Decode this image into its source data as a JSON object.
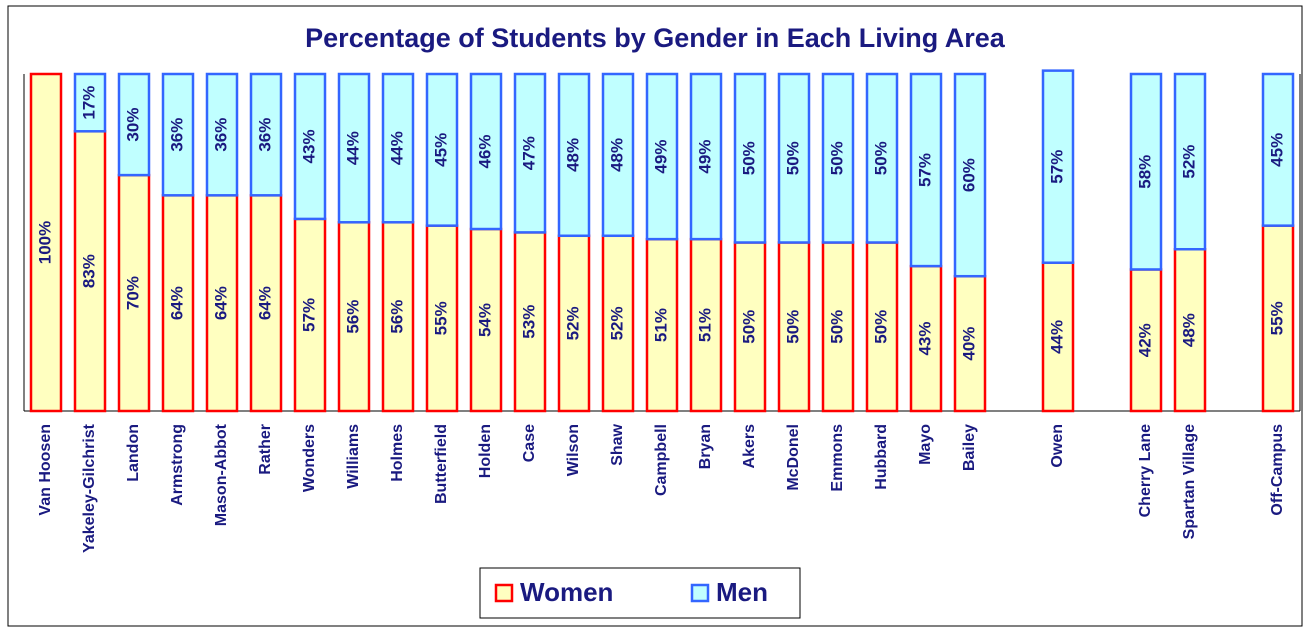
{
  "chart_data": {
    "type": "stacked_bar",
    "title": "Percentage of Students by Gender in Each Living Area",
    "categories": [
      "Van Hoosen",
      "Yakeley-Gilchrist",
      "Landon",
      "Armstrong",
      "Mason-Abbot",
      "Rather",
      "Wonders",
      "Williams",
      "Holmes",
      "Butterfield",
      "Holden",
      "Case",
      "Wilson",
      "Shaw",
      "Campbell",
      "Bryan",
      "Akers",
      "McDonel",
      "Emmons",
      "Hubbard",
      "Mayo",
      "Bailey",
      null,
      "Owen",
      null,
      "Cherry Lane",
      "Spartan Village",
      null,
      "Off-Campus"
    ],
    "series": [
      {
        "name": "Women",
        "color": "#ffffc0",
        "edge_color": "#ff0000",
        "values": [
          100,
          83,
          70,
          64,
          64,
          64,
          57,
          56,
          56,
          55,
          54,
          53,
          52,
          52,
          51,
          51,
          50,
          50,
          50,
          50,
          43,
          40,
          null,
          44,
          null,
          42,
          48,
          null,
          55
        ],
        "value_labels": [
          "100%",
          "83%",
          "70%",
          "64%",
          "64%",
          "64%",
          "57%",
          "56%",
          "56%",
          "55%",
          "54%",
          "53%",
          "52%",
          "52%",
          "51%",
          "51%",
          "50%",
          "50%",
          "50%",
          "50%",
          "43%",
          "40%",
          null,
          "44%",
          null,
          "42%",
          "48%",
          null,
          "55%"
        ]
      },
      {
        "name": "Men",
        "color": "#c0ffff",
        "edge_color": "#3366ff",
        "values": [
          0,
          17,
          30,
          36,
          36,
          36,
          43,
          44,
          44,
          45,
          46,
          47,
          48,
          48,
          49,
          49,
          50,
          50,
          50,
          50,
          57,
          60,
          null,
          57,
          null,
          58,
          52,
          null,
          45
        ],
        "value_labels": [
          null,
          "17%",
          "30%",
          "36%",
          "36%",
          "36%",
          "43%",
          "44%",
          "44%",
          "45%",
          "46%",
          "47%",
          "48%",
          "48%",
          "49%",
          "49%",
          "50%",
          "50%",
          "50%",
          "50%",
          "57%",
          "60%",
          null,
          "57%",
          null,
          "58%",
          "52%",
          null,
          "45%"
        ]
      }
    ],
    "ylim": [
      0,
      100
    ],
    "legend": "bottom"
  }
}
